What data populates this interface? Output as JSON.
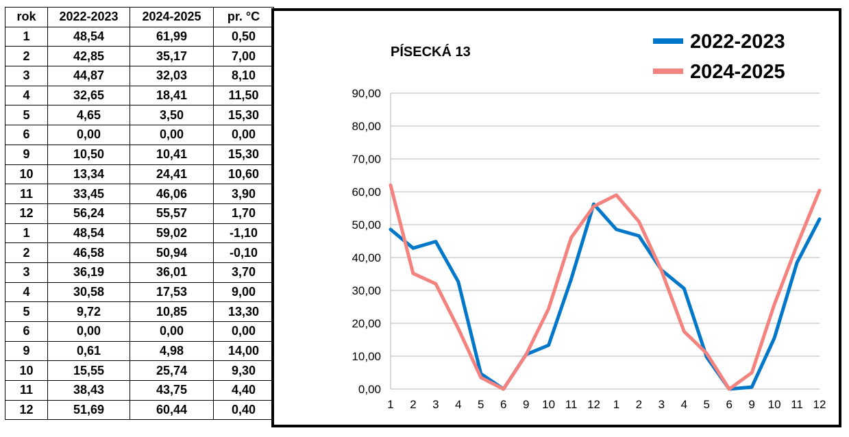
{
  "table": {
    "headers": [
      "rok",
      "2022-2023",
      "2024-2025",
      "pr. °C"
    ],
    "rows": [
      [
        "1",
        "48,54",
        "61,99",
        "0,50"
      ],
      [
        "2",
        "42,85",
        "35,17",
        "7,00"
      ],
      [
        "3",
        "44,87",
        "32,03",
        "8,10"
      ],
      [
        "4",
        "32,65",
        "18,41",
        "11,50"
      ],
      [
        "5",
        "4,65",
        "3,50",
        "15,30"
      ],
      [
        "6",
        "0,00",
        "0,00",
        "0,00"
      ],
      [
        "9",
        "10,50",
        "10,41",
        "15,30"
      ],
      [
        "10",
        "13,34",
        "24,41",
        "10,60"
      ],
      [
        "11",
        "33,45",
        "46,06",
        "3,90"
      ],
      [
        "12",
        "56,24",
        "55,57",
        "1,70"
      ],
      [
        "1",
        "48,54",
        "59,02",
        "-1,10"
      ],
      [
        "2",
        "46,58",
        "50,94",
        "-0,10"
      ],
      [
        "3",
        "36,19",
        "36,01",
        "3,70"
      ],
      [
        "4",
        "30,58",
        "17,53",
        "9,00"
      ],
      [
        "5",
        "9,72",
        "10,85",
        "13,30"
      ],
      [
        "6",
        "0,00",
        "0,00",
        "0,00"
      ],
      [
        "9",
        "0,61",
        "4,98",
        "14,00"
      ],
      [
        "10",
        "15,55",
        "25,74",
        "9,30"
      ],
      [
        "11",
        "38,43",
        "43,75",
        "4,40"
      ],
      [
        "12",
        "51,69",
        "60,44",
        "0,40"
      ]
    ]
  },
  "chart_data": {
    "type": "line",
    "title": "PÍSECKÁ 13",
    "xlabel": "",
    "ylabel": "",
    "categories": [
      "1",
      "2",
      "3",
      "4",
      "5",
      "6",
      "9",
      "10",
      "11",
      "12",
      "1",
      "2",
      "3",
      "4",
      "5",
      "6",
      "9",
      "10",
      "11",
      "12"
    ],
    "series": [
      {
        "name": "2022-2023",
        "color": "#0077C8",
        "values": [
          48.54,
          42.85,
          44.87,
          32.65,
          4.65,
          0.0,
          10.5,
          13.34,
          33.45,
          56.24,
          48.54,
          46.58,
          36.19,
          30.58,
          9.72,
          0.0,
          0.61,
          15.55,
          38.43,
          51.69
        ]
      },
      {
        "name": "2024-2025",
        "color": "#F4837F",
        "values": [
          61.99,
          35.17,
          32.03,
          18.41,
          3.5,
          0.0,
          10.41,
          24.41,
          46.06,
          55.57,
          59.02,
          50.94,
          36.01,
          17.53,
          10.85,
          0.0,
          4.98,
          25.74,
          43.75,
          60.44
        ]
      }
    ],
    "ylim": [
      0,
      90
    ],
    "y_ticks": [
      "0,00",
      "10,00",
      "20,00",
      "30,00",
      "40,00",
      "50,00",
      "60,00",
      "70,00",
      "80,00",
      "90,00"
    ],
    "grid": "horizontal",
    "legend_position": "top-right"
  }
}
